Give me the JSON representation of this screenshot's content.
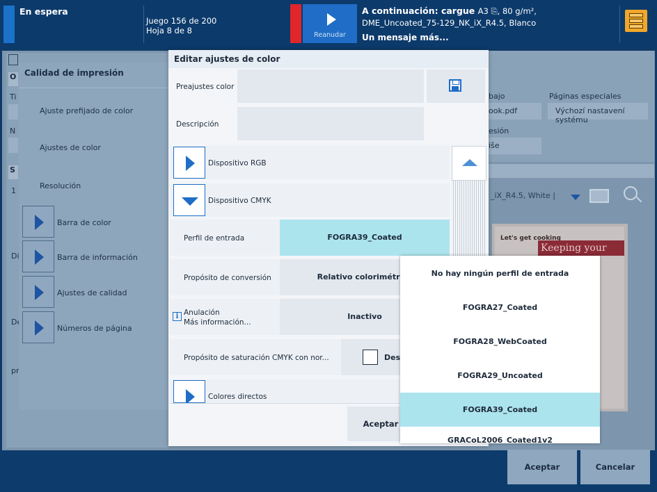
{
  "topbar": {
    "status": "En espera",
    "job_line1": "Juego 156 de 200",
    "job_line2": "Hoja 8 de 8",
    "resume_label": "Reanudar",
    "next_title": "A continuación: cargue",
    "next_media": "A3 ⎘, 80 g/m²,",
    "next_line2": "DME_Uncoated_75-129_NK_iX_R4.5, Blanco",
    "next_line3": "Un mensaje más..."
  },
  "background": {
    "left_title": "Calidad de impresión",
    "left_items": [
      "Ajuste prefijado de color",
      "Ajustes de color",
      "Resolución"
    ],
    "left_expanders": [
      "Barra de color",
      "Barra de información",
      "Ajustes de calidad",
      "Números de página"
    ],
    "tab_o": "O",
    "tab_s": "S",
    "frag_ti": "Ti",
    "frag_n": "N",
    "frag_1": "1",
    "frag_di": "Di",
    "frag_de": "De",
    "frag_pr": "pr",
    "right_col1_hdr": "bajo",
    "right_col1_val": "ook.pdf",
    "right_col2_hdr": "Páginas especiales",
    "right_col2_val": "Výchozí nastavení systému",
    "right_sub_hdr": "esión",
    "right_sub_val": "iše",
    "media_text": "_iX_R4.5, White |",
    "preview_lets": "Let's get cooking",
    "preview_title": "Keeping your",
    "accept": "Aceptar",
    "cancel": "Cancelar"
  },
  "dialog": {
    "title": "Editar ajustes de color",
    "preset_label": "Preajustes color",
    "description_label": "Descripción",
    "rgb_device": "Dispositivo RGB",
    "cmyk_device": "Dispositivo CMYK",
    "input_profile_label": "Perfil de entrada",
    "input_profile_value": "FOGRA39_Coated",
    "conversion_label": "Propósito de conversión",
    "conversion_value": "Relativo colorimétrico",
    "override_label": "Anulación",
    "override_more": "Más información...",
    "override_value": "Inactivo",
    "saturation_label": "Propósito de saturación CMYK con nor...",
    "saturation_value": "Desactivado",
    "spot_colors": "Colores directos",
    "accept": "Aceptar"
  },
  "dropdown": {
    "items": [
      "No hay ningún perfil de entrada",
      "FOGRA27_Coated",
      "FOGRA28_WebCoated",
      "FOGRA29_Uncoated",
      "FOGRA39_Coated",
      "GRACoL2006_Coated1v2"
    ],
    "selected": "FOGRA39_Coated"
  },
  "colors": {
    "accent": "#1f6dc6",
    "selected": "#ace4ee",
    "alert": "#e0262b",
    "topbar": "#0c3a6b"
  }
}
